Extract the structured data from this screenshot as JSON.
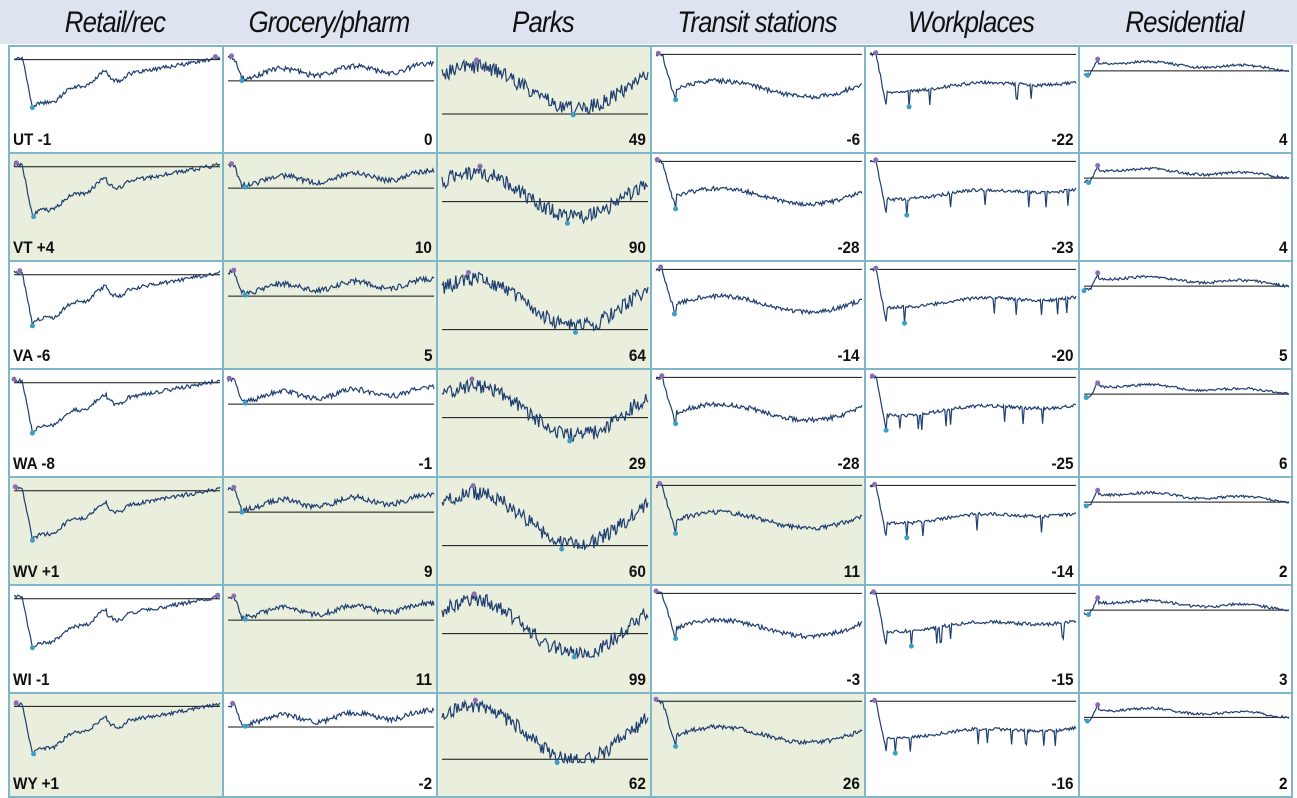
{
  "chart_data": {
    "type": "line",
    "columns": [
      "Retail/rec",
      "Grocery/pharm",
      "Parks",
      "Transit stations",
      "Workplaces",
      "Residential"
    ],
    "colors": {
      "line": "#1f3f70",
      "baseline": "#111111",
      "highlight_bg": "#eaeedd",
      "cell_border": "#7fb6c8",
      "header_band": "#dde3ef",
      "max_marker": "#8e6bb5",
      "min_marker": "#3aa0c8"
    },
    "rows": [
      {
        "state": "UT",
        "label": "UT -1",
        "values": [
          "-1",
          "0",
          "49",
          "-6",
          "-22",
          "4"
        ],
        "highlighted": [
          false,
          false,
          true,
          false,
          false,
          false
        ]
      },
      {
        "state": "VT",
        "label": "VT +4",
        "values": [
          "+4",
          "10",
          "90",
          "-28",
          "-23",
          "4"
        ],
        "highlighted": [
          true,
          true,
          true,
          false,
          false,
          false
        ]
      },
      {
        "state": "VA",
        "label": "VA -6",
        "values": [
          "-6",
          "5",
          "64",
          "-14",
          "-20",
          "5"
        ],
        "highlighted": [
          false,
          true,
          true,
          false,
          false,
          false
        ]
      },
      {
        "state": "WA",
        "label": "WA -8",
        "values": [
          "-8",
          "-1",
          "29",
          "-28",
          "-25",
          "6"
        ],
        "highlighted": [
          false,
          false,
          true,
          false,
          false,
          false
        ]
      },
      {
        "state": "WV",
        "label": "WV +1",
        "values": [
          "+1",
          "9",
          "60",
          "11",
          "-14",
          "2"
        ],
        "highlighted": [
          true,
          true,
          true,
          true,
          false,
          false
        ]
      },
      {
        "state": "WI",
        "label": "WI -1",
        "values": [
          "-1",
          "11",
          "99",
          "-3",
          "-15",
          "3"
        ],
        "highlighted": [
          false,
          true,
          true,
          false,
          false,
          false
        ]
      },
      {
        "state": "WY",
        "label": "WY +1",
        "values": [
          "+1",
          "-2",
          "62",
          "26",
          "-16",
          "2"
        ],
        "highlighted": [
          true,
          false,
          true,
          true,
          false,
          false
        ]
      }
    ]
  }
}
